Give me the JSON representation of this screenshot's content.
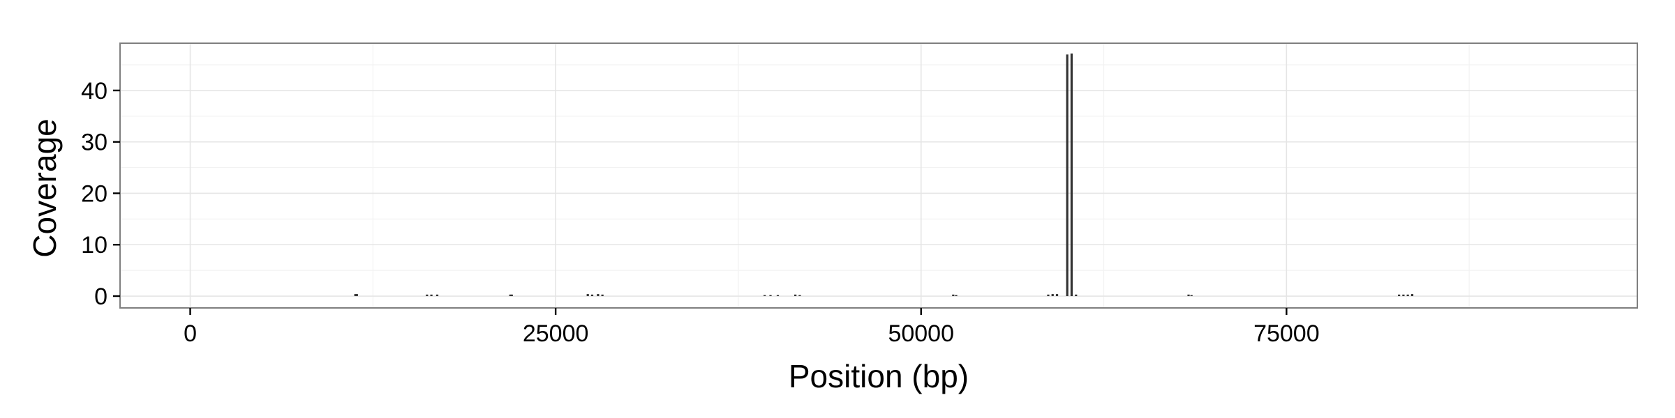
{
  "chart_data": {
    "type": "bar",
    "xlabel": "Position (bp)",
    "ylabel": "Coverage",
    "xlim": [
      -4800,
      99000
    ],
    "ylim": [
      -2.3,
      49.2
    ],
    "x_ticks": [
      0,
      25000,
      50000,
      75000
    ],
    "x_tick_labels": [
      "0",
      "25000",
      "50000",
      "75000"
    ],
    "y_ticks": [
      0,
      10,
      20,
      30,
      40
    ],
    "y_tick_labels": [
      "0",
      "10",
      "20",
      "30",
      "40"
    ],
    "grid": true,
    "legend": "none",
    "colors": {
      "bar": "#333333",
      "panel_border": "#7f7f7f",
      "grid_major": "#e5e5e5",
      "grid_minor": "#f2f2f2"
    },
    "series": [
      {
        "x": [
          11300,
          11400,
          16200,
          16500,
          16900,
          21900,
          22000,
          27200,
          27500,
          27900,
          28200,
          39300,
          39700,
          40200,
          41400,
          41700,
          52200,
          52400,
          58700,
          59000,
          59300,
          60000,
          60300,
          60600,
          68300,
          68500,
          82700,
          83000,
          83300,
          83600
        ],
        "values": [
          0.4,
          0.4,
          0.3,
          0.3,
          0.3,
          0.3,
          0.3,
          0.4,
          0.3,
          0.4,
          0.3,
          0.2,
          0.2,
          0.2,
          0.3,
          0.2,
          0.3,
          0.2,
          0.3,
          0.4,
          0.4,
          47.0,
          47.2,
          0.3,
          0.3,
          0.2,
          0.3,
          0.3,
          0.3,
          0.4
        ]
      }
    ]
  }
}
